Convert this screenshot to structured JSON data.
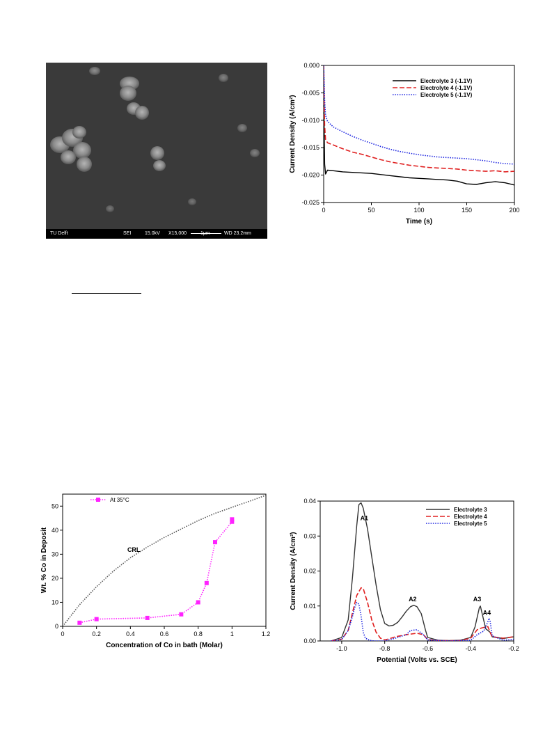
{
  "sem_image": {
    "info_bar": {
      "lab": "TU Delft",
      "detector": "SEI",
      "voltage": "15.0kV",
      "magnification": "X15,000",
      "scale": "1μm",
      "working_distance": "WD 23.2mm"
    }
  },
  "chart_data": [
    {
      "type": "line",
      "id": "chrono",
      "xlabel": "Time (s)",
      "ylabel": "Current Density (A/cm²)",
      "xlim": [
        0,
        200
      ],
      "ylim": [
        -0.025,
        0.0
      ],
      "xticks": [
        "0",
        "50",
        "100",
        "150",
        "200"
      ],
      "yticks": [
        "0.000",
        "-0.005",
        "-0.010",
        "-0.015",
        "-0.020",
        "-0.025"
      ],
      "legend": "top-right",
      "grid": false,
      "series": [
        {
          "name": "Electrolyte 3 (-1.1V)",
          "color": "#000000",
          "dash": "solid",
          "x": [
            0,
            0.5,
            1,
            2,
            4,
            10,
            20,
            30,
            40,
            50,
            60,
            70,
            80,
            90,
            100,
            110,
            120,
            130,
            140,
            150,
            160,
            170,
            180,
            190,
            200
          ],
          "y": [
            0.0,
            -0.012,
            -0.018,
            -0.0198,
            -0.0191,
            -0.0192,
            -0.0194,
            -0.0195,
            -0.0196,
            -0.0197,
            -0.0199,
            -0.0201,
            -0.0203,
            -0.0205,
            -0.0206,
            -0.0207,
            -0.0208,
            -0.0209,
            -0.0211,
            -0.0216,
            -0.0217,
            -0.0214,
            -0.0212,
            -0.0214,
            -0.0218
          ]
        },
        {
          "name": "Electrolyte 4 (-1.1V)",
          "color": "#e02020",
          "dash": "dash",
          "x": [
            0,
            0.5,
            1,
            2,
            4,
            10,
            20,
            30,
            40,
            50,
            60,
            70,
            80,
            90,
            100,
            110,
            120,
            130,
            140,
            150,
            160,
            170,
            180,
            190,
            200
          ],
          "y": [
            0.0,
            -0.007,
            -0.011,
            -0.0135,
            -0.0141,
            -0.0145,
            -0.0152,
            -0.0158,
            -0.0162,
            -0.0167,
            -0.0172,
            -0.0176,
            -0.0179,
            -0.0182,
            -0.0184,
            -0.0186,
            -0.0187,
            -0.0188,
            -0.0189,
            -0.0191,
            -0.0192,
            -0.0193,
            -0.0192,
            -0.0194,
            -0.0193
          ]
        },
        {
          "name": "Electrolyte 5 (-1.1V)",
          "color": "#1a22e0",
          "dash": "dot",
          "x": [
            0,
            0.5,
            1,
            2,
            4,
            10,
            20,
            30,
            40,
            50,
            60,
            70,
            80,
            90,
            100,
            110,
            120,
            130,
            140,
            150,
            160,
            170,
            180,
            190,
            200
          ],
          "y": [
            0.0,
            -0.003,
            -0.0065,
            -0.0091,
            -0.0102,
            -0.0112,
            -0.0121,
            -0.0129,
            -0.0136,
            -0.0142,
            -0.0148,
            -0.0153,
            -0.0157,
            -0.016,
            -0.0163,
            -0.0165,
            -0.0167,
            -0.0168,
            -0.0169,
            -0.017,
            -0.0172,
            -0.0174,
            -0.0177,
            -0.0179,
            -0.018
          ]
        }
      ]
    },
    {
      "type": "scatter",
      "id": "composition",
      "xlabel": "Concentration of Co in bath  (Molar)",
      "ylabel": "Wt. % Co in Deposit",
      "xlim": [
        0,
        1.2
      ],
      "ylim": [
        0,
        55
      ],
      "xticks": [
        "0",
        "0.2",
        "0.4",
        "0.6",
        "0.8",
        "1",
        "1.2"
      ],
      "yticks": [
        "0",
        "10",
        "20",
        "30",
        "40",
        "50"
      ],
      "legend": "top-left",
      "grid": false,
      "series": [
        {
          "name": "At 35°C",
          "color": "#ff22ff",
          "marker": "square",
          "dash": "dot",
          "x": [
            0.1,
            0.2,
            0.5,
            0.7,
            0.8,
            0.85,
            0.9,
            1.0,
            1.0
          ],
          "y": [
            1.5,
            3.0,
            3.5,
            5.0,
            10.0,
            18.0,
            35.0,
            43.5,
            44.5
          ]
        },
        {
          "name": "",
          "color": "#555555",
          "dash": "dot",
          "x": [
            0,
            0.1,
            0.2,
            0.3,
            0.4,
            0.5,
            0.6,
            0.7,
            0.8,
            0.9,
            1.0,
            1.1,
            1.2
          ],
          "y": [
            0,
            9,
            16.5,
            23,
            28.5,
            33,
            37,
            40.5,
            44,
            47,
            49.5,
            52,
            54.5
          ]
        }
      ],
      "annotations": [
        {
          "text": "CRL",
          "x": 0.42,
          "y": 31
        }
      ]
    },
    {
      "type": "line",
      "id": "stripping",
      "xlabel": "Potential (Volts vs. SCE)",
      "ylabel": "Current Density (A/cm²)",
      "xlim": [
        -1.1,
        -0.2
      ],
      "ylim": [
        0,
        0.04
      ],
      "xticks": [
        "-1.0",
        "-0.8",
        "-0.6",
        "-0.4",
        "-0.2"
      ],
      "yticks": [
        "0.00",
        "0.01",
        "0.02",
        "0.03",
        "0.04"
      ],
      "legend": "top-right",
      "grid": false,
      "series": [
        {
          "name": "Electrolyte 3",
          "color": "#333333",
          "dash": "solid",
          "x": [
            -1.05,
            -1.0,
            -0.97,
            -0.95,
            -0.93,
            -0.92,
            -0.91,
            -0.9,
            -0.88,
            -0.86,
            -0.84,
            -0.82,
            -0.8,
            -0.78,
            -0.76,
            -0.74,
            -0.72,
            -0.7,
            -0.68,
            -0.665,
            -0.65,
            -0.63,
            -0.61,
            -0.6,
            -0.55,
            -0.5,
            -0.45,
            -0.4,
            -0.38,
            -0.36,
            -0.355,
            -0.34,
            -0.33,
            -0.31,
            -0.3,
            -0.25,
            -0.2
          ],
          "y": [
            0.0,
            0.001,
            0.006,
            0.018,
            0.033,
            0.039,
            0.0395,
            0.038,
            0.032,
            0.024,
            0.016,
            0.009,
            0.005,
            0.0043,
            0.0045,
            0.0053,
            0.0068,
            0.0085,
            0.0098,
            0.0102,
            0.0098,
            0.0078,
            0.003,
            0.001,
            0.0002,
            0.0001,
            0.0002,
            0.001,
            0.004,
            0.0095,
            0.01,
            0.006,
            0.0035,
            0.0025,
            0.0012,
            0.0007,
            0.0012
          ]
        },
        {
          "name": "Electrolyte 4",
          "color": "#e02020",
          "dash": "dash",
          "x": [
            -1.05,
            -1.0,
            -0.97,
            -0.95,
            -0.93,
            -0.91,
            -0.9,
            -0.88,
            -0.86,
            -0.84,
            -0.82,
            -0.8,
            -0.78,
            -0.75,
            -0.7,
            -0.65,
            -0.62,
            -0.6,
            -0.55,
            -0.45,
            -0.4,
            -0.37,
            -0.35,
            -0.33,
            -0.32,
            -0.31,
            -0.3,
            -0.25,
            -0.2
          ],
          "y": [
            0.0,
            0.0005,
            0.003,
            0.008,
            0.013,
            0.0152,
            0.015,
            0.011,
            0.006,
            0.0025,
            0.0008,
            0.0003,
            0.0006,
            0.0012,
            0.0018,
            0.0022,
            0.0018,
            0.0004,
            0.0001,
            0.0001,
            0.0008,
            0.0032,
            0.0037,
            0.004,
            0.0041,
            0.0025,
            0.0012,
            0.0008,
            0.0012
          ]
        },
        {
          "name": "Electrolyte 5",
          "color": "#1a22e0",
          "dash": "dot",
          "x": [
            -1.05,
            -1.0,
            -0.97,
            -0.95,
            -0.94,
            -0.93,
            -0.92,
            -0.91,
            -0.9,
            -0.89,
            -0.87,
            -0.85,
            -0.8,
            -0.75,
            -0.7,
            -0.68,
            -0.65,
            -0.62,
            -0.6,
            -0.5,
            -0.4,
            -0.37,
            -0.34,
            -0.32,
            -0.315,
            -0.31,
            -0.3,
            -0.25,
            -0.2
          ],
          "y": [
            0.0,
            0.0004,
            0.003,
            0.007,
            0.0095,
            0.011,
            0.0105,
            0.0072,
            0.0025,
            0.0008,
            0.0002,
            0.0,
            0.0,
            0.0008,
            0.0018,
            0.003,
            0.0032,
            0.0018,
            0.0003,
            0.0,
            0.0002,
            0.0018,
            0.0028,
            0.0055,
            0.0065,
            0.0058,
            0.0015,
            0.0002,
            0.0004
          ]
        }
      ],
      "annotations": [
        {
          "text": "A1",
          "x": -0.895,
          "y": 0.0345
        },
        {
          "text": "A2",
          "x": -0.67,
          "y": 0.0113
        },
        {
          "text": "A3",
          "x": -0.37,
          "y": 0.0113
        },
        {
          "text": "A4",
          "x": -0.325,
          "y": 0.0075
        }
      ]
    }
  ]
}
